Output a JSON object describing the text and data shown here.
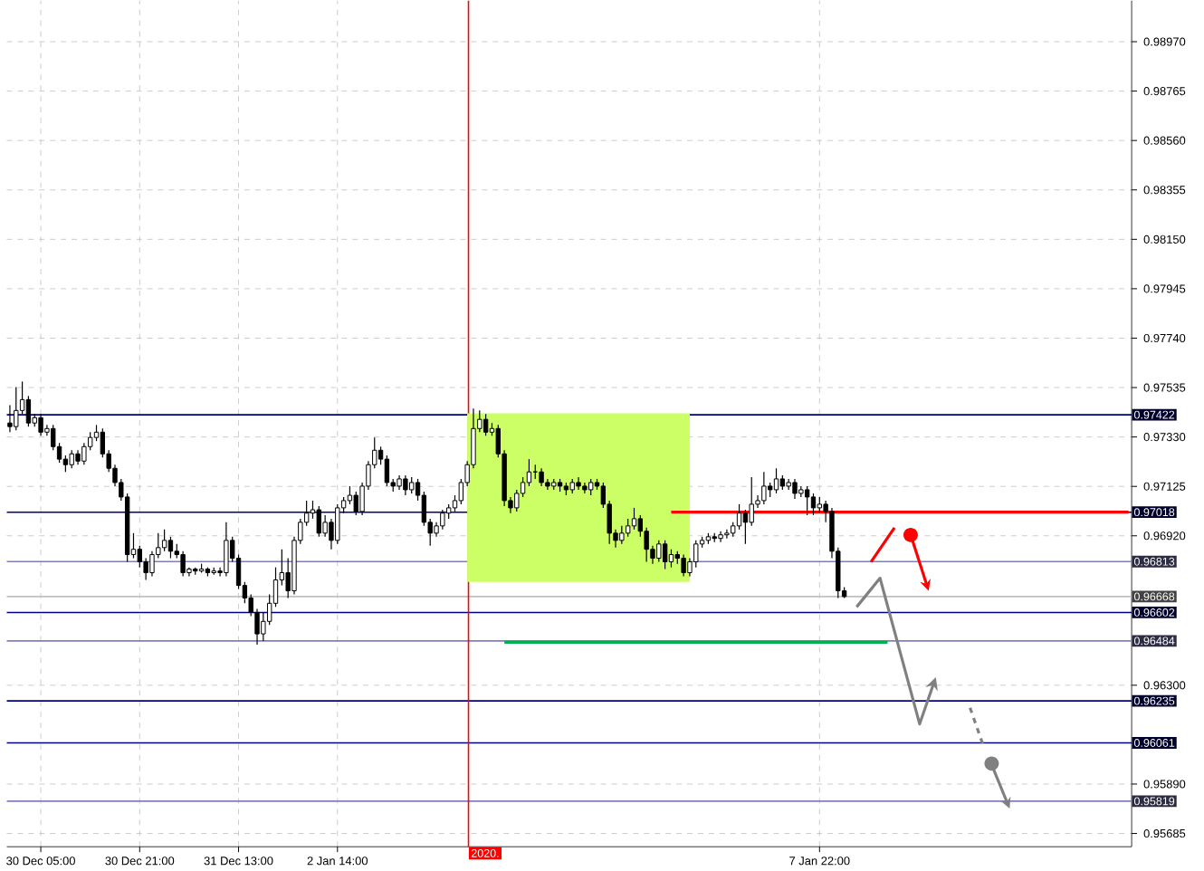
{
  "chart_data": {
    "type": "candlestick",
    "categories": [
      null,
      null,
      null,
      null,
      null,
      "30 Dec 05:00",
      null,
      null,
      null,
      null,
      null,
      null,
      null,
      null,
      null,
      null,
      null,
      null,
      null,
      null,
      null,
      "30 Dec 21:00",
      null,
      null,
      null,
      null,
      null,
      null,
      null,
      null,
      null,
      null,
      null,
      null,
      null,
      null,
      null,
      "31 Dec 13:00",
      null,
      null,
      null,
      null,
      null,
      null,
      null,
      null,
      null,
      null,
      null,
      null,
      null,
      null,
      null,
      "2 Jan 14:00",
      null,
      null,
      null,
      null,
      null,
      null,
      null,
      null,
      null,
      null,
      null,
      null,
      null,
      null,
      null,
      null,
      null,
      null,
      null,
      null,
      null,
      null,
      null,
      null,
      null,
      null,
      null,
      null,
      null,
      null,
      null,
      null,
      null,
      null,
      null,
      null,
      null,
      null,
      null,
      null,
      null,
      null,
      null,
      null,
      null,
      null,
      null,
      null,
      null,
      null,
      null,
      null,
      null,
      null,
      null,
      null,
      null,
      null,
      null,
      null,
      null,
      null,
      null,
      null,
      null,
      null,
      null,
      null,
      null,
      null,
      null,
      null,
      null,
      null,
      null,
      null,
      null,
      "7 Jan 22:00",
      null,
      null,
      null,
      null,
      null,
      null,
      null,
      null,
      null,
      null,
      null,
      null,
      null,
      null,
      null,
      null,
      null,
      null,
      null,
      null,
      null,
      null,
      null,
      null,
      null,
      null,
      null,
      null,
      null,
      null,
      null,
      null,
      null,
      null,
      null,
      null,
      null,
      null,
      null,
      null,
      null,
      null,
      null,
      null,
      null,
      null,
      null,
      null,
      null,
      null
    ],
    "ohlc": [
      [
        0.97388,
        0.97462,
        0.9735,
        0.97373
      ],
      [
        0.97373,
        0.97537,
        0.97358,
        0.9744
      ],
      [
        0.9744,
        0.9756,
        0.97425,
        0.97485
      ],
      [
        0.97485,
        0.975,
        0.97373,
        0.97388
      ],
      [
        0.97388,
        0.97425,
        0.97373,
        0.9741
      ],
      [
        0.9741,
        0.97425,
        0.97335,
        0.9735
      ],
      [
        0.9735,
        0.9738,
        0.97335,
        0.97365
      ],
      [
        0.97365,
        0.9738,
        0.97275,
        0.9729
      ],
      [
        0.9729,
        0.97305,
        0.97223,
        0.97238
      ],
      [
        0.97238,
        0.97253,
        0.97185,
        0.97215
      ],
      [
        0.97215,
        0.97275,
        0.972,
        0.9726
      ],
      [
        0.9726,
        0.97275,
        0.97215,
        0.9723
      ],
      [
        0.9723,
        0.97305,
        0.97215,
        0.9729
      ],
      [
        0.9729,
        0.9735,
        0.97275,
        0.97328
      ],
      [
        0.97328,
        0.9738,
        0.97313,
        0.9735
      ],
      [
        0.9735,
        0.97365,
        0.97245,
        0.9726
      ],
      [
        0.9726,
        0.97275,
        0.97185,
        0.972
      ],
      [
        0.972,
        0.97215,
        0.97126,
        0.97141
      ],
      [
        0.97141,
        0.97156,
        0.97066,
        0.97081
      ],
      [
        0.97081,
        0.97096,
        0.96812,
        0.96842
      ],
      [
        0.96842,
        0.96931,
        0.96827,
        0.96864
      ],
      [
        0.96864,
        0.96879,
        0.96789,
        0.96812
      ],
      [
        0.96812,
        0.96827,
        0.96737,
        0.96767
      ],
      [
        0.96767,
        0.96856,
        0.96752,
        0.96842
      ],
      [
        0.96842,
        0.96931,
        0.96827,
        0.96871
      ],
      [
        0.96871,
        0.96946,
        0.96856,
        0.96901
      ],
      [
        0.96901,
        0.96916,
        0.96827,
        0.96856
      ],
      [
        0.96856,
        0.96886,
        0.96827,
        0.96842
      ],
      [
        0.96842,
        0.96856,
        0.96752,
        0.96767
      ],
      [
        0.96767,
        0.96789,
        0.96752,
        0.96782
      ],
      [
        0.96782,
        0.96789,
        0.96759,
        0.96774
      ],
      [
        0.96774,
        0.96804,
        0.96767,
        0.96782
      ],
      [
        0.96782,
        0.96789,
        0.96752,
        0.96767
      ],
      [
        0.96767,
        0.96789,
        0.96759,
        0.96774
      ],
      [
        0.96774,
        0.96789,
        0.96752,
        0.96767
      ],
      [
        0.96767,
        0.96976,
        0.96752,
        0.96901
      ],
      [
        0.96901,
        0.96916,
        0.96812,
        0.96827
      ],
      [
        0.96827,
        0.96842,
        0.96699,
        0.96714
      ],
      [
        0.96714,
        0.96729,
        0.9664,
        0.96662
      ],
      [
        0.96662,
        0.96677,
        0.96587,
        0.96602
      ],
      [
        0.96602,
        0.96617,
        0.96468,
        0.96513
      ],
      [
        0.96513,
        0.96602,
        0.96483,
        0.96565
      ],
      [
        0.96565,
        0.96677,
        0.9655,
        0.9664
      ],
      [
        0.9664,
        0.96789,
        0.96625,
        0.96737
      ],
      [
        0.96737,
        0.96864,
        0.96714,
        0.96767
      ],
      [
        0.96767,
        0.96827,
        0.96662,
        0.96692
      ],
      [
        0.96692,
        0.96916,
        0.96677,
        0.96901
      ],
      [
        0.96901,
        0.96991,
        0.96886,
        0.96976
      ],
      [
        0.96976,
        0.97066,
        0.96961,
        0.97014
      ],
      [
        0.97014,
        0.97066,
        0.96991,
        0.97028
      ],
      [
        0.97028,
        0.97043,
        0.96916,
        0.96931
      ],
      [
        0.96931,
        0.97006,
        0.96916,
        0.96976
      ],
      [
        0.96976,
        0.96991,
        0.96864,
        0.96901
      ],
      [
        0.96901,
        0.97051,
        0.96886,
        0.97036
      ],
      [
        0.97036,
        0.97081,
        0.97014,
        0.97066
      ],
      [
        0.97066,
        0.97126,
        0.97051,
        0.97088
      ],
      [
        0.97088,
        0.97103,
        0.97006,
        0.97021
      ],
      [
        0.97021,
        0.97141,
        0.97006,
        0.97126
      ],
      [
        0.97126,
        0.9723,
        0.97111,
        0.97215
      ],
      [
        0.97215,
        0.97328,
        0.972,
        0.97275
      ],
      [
        0.97275,
        0.9729,
        0.97215,
        0.97238
      ],
      [
        0.97238,
        0.97253,
        0.97126,
        0.97141
      ],
      [
        0.97141,
        0.97156,
        0.97103,
        0.97126
      ],
      [
        0.97126,
        0.97171,
        0.97111,
        0.97156
      ],
      [
        0.97156,
        0.97171,
        0.97088,
        0.97111
      ],
      [
        0.97111,
        0.97163,
        0.97096,
        0.97141
      ],
      [
        0.97141,
        0.97156,
        0.97066,
        0.97088
      ],
      [
        0.97088,
        0.97103,
        0.96961,
        0.96976
      ],
      [
        0.96976,
        0.96991,
        0.96879,
        0.96931
      ],
      [
        0.96931,
        0.96976,
        0.96916,
        0.96961
      ],
      [
        0.96961,
        0.97028,
        0.96946,
        0.97014
      ],
      [
        0.97014,
        0.97051,
        0.96991,
        0.97036
      ],
      [
        0.97036,
        0.97088,
        0.97021,
        0.97066
      ],
      [
        0.97066,
        0.97156,
        0.97051,
        0.97141
      ],
      [
        0.97141,
        0.9723,
        0.97126,
        0.97215
      ],
      [
        0.97215,
        0.97448,
        0.972,
        0.97365
      ],
      [
        0.97365,
        0.9744,
        0.9735,
        0.97403
      ],
      [
        0.97403,
        0.97425,
        0.97335,
        0.9735
      ],
      [
        0.9735,
        0.97388,
        0.97335,
        0.97365
      ],
      [
        0.97365,
        0.9738,
        0.97245,
        0.9726
      ],
      [
        0.9726,
        0.97275,
        0.97043,
        0.97066
      ],
      [
        0.97066,
        0.97081,
        0.97014,
        0.97036
      ],
      [
        0.97036,
        0.97111,
        0.97021,
        0.97096
      ],
      [
        0.97096,
        0.97163,
        0.97081,
        0.97141
      ],
      [
        0.97141,
        0.97238,
        0.97126,
        0.97185
      ],
      [
        0.97185,
        0.97215,
        0.97156,
        0.97185
      ],
      [
        0.97185,
        0.972,
        0.97126,
        0.97141
      ],
      [
        0.97141,
        0.97156,
        0.97111,
        0.97126
      ],
      [
        0.97126,
        0.97156,
        0.97111,
        0.97141
      ],
      [
        0.97141,
        0.97156,
        0.97103,
        0.97126
      ],
      [
        0.97126,
        0.97141,
        0.97088,
        0.97111
      ],
      [
        0.97111,
        0.97156,
        0.97096,
        0.97141
      ],
      [
        0.97141,
        0.97163,
        0.97111,
        0.97126
      ],
      [
        0.97126,
        0.97141,
        0.97096,
        0.97111
      ],
      [
        0.97111,
        0.97156,
        0.97088,
        0.97141
      ],
      [
        0.97141,
        0.97156,
        0.97111,
        0.97126
      ],
      [
        0.97126,
        0.97141,
        0.97036,
        0.97051
      ],
      [
        0.97051,
        0.97066,
        0.96886,
        0.96931
      ],
      [
        0.96931,
        0.96946,
        0.96871,
        0.96901
      ],
      [
        0.96901,
        0.96961,
        0.96886,
        0.96931
      ],
      [
        0.96931,
        0.96991,
        0.96916,
        0.96961
      ],
      [
        0.96961,
        0.97036,
        0.96946,
        0.96991
      ],
      [
        0.96991,
        0.97006,
        0.96916,
        0.96939
      ],
      [
        0.96939,
        0.96954,
        0.96812,
        0.96864
      ],
      [
        0.96864,
        0.96879,
        0.96804,
        0.96827
      ],
      [
        0.96827,
        0.96901,
        0.96812,
        0.96886
      ],
      [
        0.96886,
        0.96901,
        0.96782,
        0.96812
      ],
      [
        0.96812,
        0.96864,
        0.96789,
        0.96842
      ],
      [
        0.96842,
        0.96856,
        0.96804,
        0.96827
      ],
      [
        0.96827,
        0.96842,
        0.96752,
        0.96767
      ],
      [
        0.96767,
        0.96827,
        0.96752,
        0.96812
      ],
      [
        0.96812,
        0.96901,
        0.96789,
        0.96886
      ],
      [
        0.96886,
        0.96916,
        0.96871,
        0.96901
      ],
      [
        0.96901,
        0.96931,
        0.96886,
        0.96916
      ],
      [
        0.96916,
        0.96931,
        0.96894,
        0.96909
      ],
      [
        0.96909,
        0.96939,
        0.96894,
        0.96924
      ],
      [
        0.96924,
        0.96946,
        0.96909,
        0.96931
      ],
      [
        0.96931,
        0.96976,
        0.96916,
        0.96961
      ],
      [
        0.96961,
        0.97051,
        0.96946,
        0.97014
      ],
      [
        0.97014,
        0.97028,
        0.96886,
        0.96976
      ],
      [
        0.96976,
        0.97163,
        0.96961,
        0.97051
      ],
      [
        0.97051,
        0.97088,
        0.97036,
        0.97066
      ],
      [
        0.97066,
        0.97185,
        0.97051,
        0.97126
      ],
      [
        0.97126,
        0.97141,
        0.97081,
        0.97111
      ],
      [
        0.97111,
        0.972,
        0.97096,
        0.97156
      ],
      [
        0.97156,
        0.97171,
        0.97111,
        0.97126
      ],
      [
        0.97126,
        0.97156,
        0.97111,
        0.97141
      ],
      [
        0.97141,
        0.97156,
        0.97073,
        0.97096
      ],
      [
        0.97096,
        0.97126,
        0.97081,
        0.97111
      ],
      [
        0.97111,
        0.97126,
        0.97006,
        0.97081
      ],
      [
        0.97081,
        0.97096,
        0.97006,
        0.97036
      ],
      [
        0.97036,
        0.97081,
        0.97014,
        0.97051
      ],
      [
        0.97051,
        0.97066,
        0.96976,
        0.97021
      ],
      [
        0.97021,
        0.97036,
        0.96827,
        0.96856
      ],
      [
        0.96856,
        0.96871,
        0.96662,
        0.96692
      ],
      [
        0.96692,
        0.96707,
        0.96662,
        0.96668
      ],
      null,
      null,
      null,
      null,
      null,
      null,
      null,
      null,
      null,
      null,
      null,
      null,
      null,
      null,
      null,
      null,
      null,
      null,
      null,
      null,
      null,
      null,
      null,
      null,
      null,
      null,
      null,
      null,
      null,
      null,
      null,
      null,
      null,
      null,
      null,
      null,
      null,
      null,
      null,
      null,
      null,
      null,
      null,
      null,
      null,
      null
    ],
    "series": [
      {
        "type": "line",
        "color": "#ccff66",
        "upper": [
          null,
          null,
          null,
          null,
          null,
          null,
          null,
          null,
          null,
          null,
          null,
          null,
          null,
          null,
          null,
          null,
          null,
          null,
          null,
          null,
          null,
          null,
          null,
          null,
          null,
          null,
          null,
          null,
          null,
          null,
          null,
          null,
          null,
          null,
          null,
          null,
          null,
          null,
          null,
          null,
          null,
          null,
          null,
          null,
          null,
          null,
          null,
          null,
          null,
          null,
          null,
          null,
          null,
          null,
          null,
          null,
          null,
          null,
          null,
          null,
          null,
          null,
          null,
          null,
          null,
          null,
          null,
          null,
          null,
          null,
          null,
          null,
          null,
          null,
          0.97422,
          0.97422,
          0.97422,
          0.97422,
          0.97422,
          0.97422,
          0.97422,
          0.97422,
          0.97422,
          0.97422,
          0.97422,
          0.97422,
          0.97422,
          0.97422,
          0.97422,
          0.97422,
          0.97422,
          0.97422,
          0.97422,
          0.97422,
          0.97422,
          0.97422,
          0.97422,
          0.97422,
          0.97422,
          0.97422,
          0.97422,
          0.97422,
          0.97422,
          0.97422,
          0.97422,
          0.97422,
          0.97422,
          0.97422,
          0.97422,
          0.97422,
          0.97422,
          null,
          null,
          null,
          null,
          null,
          null,
          null,
          null,
          null,
          null,
          null,
          null,
          null,
          null,
          null,
          null,
          null,
          null,
          null,
          null,
          null,
          null,
          null,
          null,
          null,
          null,
          null,
          null,
          null,
          null,
          null,
          null,
          null,
          null,
          null,
          null,
          null,
          null,
          null,
          null,
          null,
          null,
          null,
          null,
          null,
          null,
          null,
          null,
          null,
          null,
          null,
          null,
          null,
          null,
          null,
          null,
          null,
          null,
          null,
          null,
          null,
          null,
          null,
          null,
          null,
          null,
          null,
          null,
          null,
          null,
          null
        ],
        "values": [
          null,
          null,
          null,
          null,
          null,
          null,
          null,
          null,
          null,
          null,
          null,
          null,
          null,
          null,
          null,
          null,
          null,
          null,
          null,
          null,
          null,
          null,
          null,
          null,
          null,
          null,
          null,
          null,
          null,
          null,
          null,
          null,
          null,
          null,
          null,
          null,
          null,
          null,
          null,
          null,
          null,
          null,
          null,
          null,
          null,
          null,
          null,
          null,
          null,
          null,
          null,
          null,
          null,
          null,
          null,
          null,
          null,
          null,
          null,
          null,
          null,
          null,
          null,
          null,
          null,
          null,
          null,
          null,
          null,
          null,
          null,
          null,
          null,
          null,
          0.97422,
          0.97422,
          0.97422,
          0.97422,
          0.97422,
          0.97422,
          0.97422,
          0.97422,
          0.97422,
          0.97422,
          0.97422,
          0.97422,
          0.97422,
          0.97422,
          0.97422,
          0.97422,
          0.97422,
          0.97422,
          0.97422,
          0.97422,
          0.97422,
          0.97422,
          0.97422,
          0.97422,
          0.97422,
          0.97422,
          0.97422,
          0.97422,
          0.97422,
          0.97422,
          0.97422,
          0.97422,
          0.97422,
          0.97422,
          0.97422,
          0.97422,
          0.97422,
          null,
          null,
          null,
          null,
          null,
          null,
          null,
          null,
          null,
          null,
          null,
          null,
          null,
          null,
          null,
          null,
          null,
          null,
          null,
          null,
          null,
          null,
          null,
          null,
          null,
          null,
          null,
          null,
          null,
          null,
          null,
          null,
          null,
          null,
          null,
          null,
          null,
          null,
          null,
          null,
          null,
          null,
          null,
          null,
          null,
          null,
          null,
          null,
          null,
          null,
          null,
          null,
          null,
          null,
          null,
          null,
          null,
          null,
          null,
          null,
          null,
          null,
          null,
          null,
          null,
          null,
          null,
          null,
          null,
          null,
          null
        ],
        "lower": [
          null,
          null,
          null,
          null,
          null,
          null,
          null,
          null,
          null,
          null,
          null,
          null,
          null,
          null,
          null,
          null,
          null,
          null,
          null,
          null,
          null,
          null,
          null,
          null,
          null,
          null,
          null,
          null,
          null,
          null,
          null,
          null,
          null,
          null,
          null,
          null,
          null,
          null,
          null,
          null,
          null,
          null,
          null,
          null,
          null,
          null,
          null,
          null,
          null,
          null,
          null,
          null,
          null,
          null,
          null,
          null,
          null,
          null,
          null,
          null,
          null,
          null,
          null,
          null,
          null,
          null,
          null,
          null,
          null,
          null,
          null,
          null,
          null,
          null,
          0.96729,
          0.96729,
          0.96729,
          0.96729,
          0.96729,
          0.96729,
          0.96729,
          0.96729,
          0.96729,
          0.96729,
          0.96729,
          0.96729,
          0.96729,
          0.96729,
          0.96729,
          0.96729,
          0.96729,
          0.96729,
          0.96729,
          0.96729,
          0.96729,
          0.96729,
          0.96729,
          0.96729,
          0.96729,
          0.96729,
          0.96729,
          0.96729,
          0.96729,
          0.96729,
          0.96729,
          0.96729,
          0.96729,
          0.96729,
          0.96729,
          0.96729,
          0.96729,
          null,
          null,
          null,
          null,
          null,
          null,
          null,
          null,
          null,
          null,
          null,
          null,
          null,
          null,
          null,
          null,
          null,
          null,
          null,
          null,
          null,
          null,
          null,
          null,
          null,
          null,
          null,
          null,
          null,
          null,
          null,
          null,
          null,
          null,
          null,
          null,
          null,
          null,
          null,
          null,
          null,
          null,
          null,
          null,
          null,
          null,
          null,
          null,
          null,
          null,
          null,
          null,
          null,
          null,
          null,
          null,
          null,
          null,
          null,
          null,
          null,
          null,
          null,
          null,
          null,
          null,
          null,
          null,
          null,
          null,
          null
        ]
      },
      {
        "type": "line",
        "color": "#ff0000",
        "values": [
          null,
          null,
          null,
          null,
          null,
          null,
          null,
          null,
          null,
          null,
          null,
          null,
          null,
          null,
          null,
          null,
          null,
          null,
          null,
          null,
          null,
          null,
          null,
          null,
          null,
          null,
          null,
          null,
          null,
          null,
          null,
          null,
          null,
          null,
          null,
          null,
          null,
          null,
          null,
          null,
          null,
          null,
          null,
          null,
          null,
          null,
          null,
          null,
          null,
          null,
          null,
          null,
          null,
          null,
          null,
          null,
          null,
          null,
          null,
          null,
          null,
          null,
          null,
          null,
          null,
          null,
          null,
          null,
          null,
          null,
          null,
          null,
          null,
          null,
          null,
          null,
          null,
          null,
          null,
          null,
          null,
          null,
          null,
          null,
          null,
          null,
          null,
          null,
          null,
          null,
          null,
          null,
          null,
          null,
          null,
          null,
          null,
          null,
          null,
          null,
          null,
          null,
          null,
          null,
          null,
          null,
          null,
          0.97018,
          0.97018,
          0.97018,
          0.97018,
          0.97018,
          0.97018,
          0.97018,
          0.97018,
          0.97018,
          0.97018,
          0.97018,
          0.97018,
          0.97018,
          0.97018,
          0.97018,
          0.97018,
          0.97018,
          0.97018,
          0.97018,
          0.97018,
          0.97018,
          0.97018,
          0.97018,
          0.97018,
          0.97018,
          0.97018,
          0.97018,
          0.97018,
          0.97018,
          0.97018,
          0.97018,
          0.97018,
          0.97018,
          0.97018,
          0.97018,
          0.97018,
          0.97018,
          0.97018,
          0.97018,
          0.97018,
          0.97018,
          0.97018,
          0.97018,
          0.97018,
          0.97018,
          0.97018,
          0.97018,
          0.97018,
          0.97018,
          0.97018,
          0.97018,
          0.97018,
          0.97018,
          0.97018,
          0.97018,
          0.97018,
          0.97018,
          0.97018,
          0.97018,
          0.97018,
          0.97018,
          0.97018,
          0.97018,
          0.97018,
          0.97018,
          0.97018,
          0.97018,
          0.97018,
          0.97018,
          0.97018,
          0.97018,
          0.97018,
          0.97018,
          0.97018,
          0.97018
        ]
      },
      {
        "type": "line",
        "color": "#00b050",
        "values": [
          null,
          null,
          null,
          null,
          null,
          null,
          null,
          null,
          null,
          null,
          null,
          null,
          null,
          null,
          null,
          null,
          null,
          null,
          null,
          null,
          null,
          null,
          null,
          null,
          null,
          null,
          null,
          null,
          null,
          null,
          null,
          null,
          null,
          null,
          null,
          null,
          null,
          null,
          null,
          null,
          null,
          null,
          null,
          null,
          null,
          null,
          null,
          null,
          null,
          null,
          null,
          null,
          null,
          null,
          null,
          null,
          null,
          null,
          null,
          null,
          null,
          null,
          null,
          null,
          null,
          null,
          null,
          null,
          null,
          null,
          null,
          null,
          null,
          null,
          null,
          null,
          null,
          null,
          null,
          null,
          0.96478,
          0.96478,
          0.96478,
          0.96478,
          0.96478,
          0.96478,
          0.96478,
          0.96478,
          0.96478,
          0.96478,
          0.96478,
          0.96478,
          0.96478,
          0.96478,
          0.96478,
          0.96478,
          0.96478,
          0.96478,
          0.96478,
          0.96478,
          0.96478,
          0.96478,
          0.96478,
          0.96478,
          0.96478,
          0.96478,
          0.96478,
          0.96478,
          0.96478,
          0.96478,
          0.96478,
          0.96478,
          0.96478,
          0.96478,
          0.96478,
          0.96478,
          0.96478,
          0.96478,
          0.96478,
          0.96478,
          0.96478,
          0.96478,
          0.96478,
          0.96478,
          0.96478,
          0.96478,
          0.96478,
          0.96478,
          0.96478,
          0.96478,
          0.96478,
          0.96478,
          0.96478,
          0.96478,
          0.96478,
          0.96478,
          0.96478,
          0.96478,
          0.96478,
          0.96478,
          0.96478,
          0.96478,
          0.96478,
          null,
          null,
          null,
          null,
          null,
          null,
          null,
          null,
          null,
          null,
          null,
          null,
          null,
          null,
          null,
          null,
          null,
          null,
          null,
          null,
          null,
          null,
          null,
          null,
          null,
          null,
          null,
          null,
          null,
          null,
          null,
          null,
          null,
          null,
          null,
          null,
          null,
          null,
          null
        ]
      }
    ],
    "ylim": [
      0.9563,
      0.9914
    ],
    "yticks": [
      {
        "value": 0.9897,
        "label": "0.98970"
      },
      {
        "value": 0.98765,
        "label": "0.98765"
      },
      {
        "value": 0.9856,
        "label": "0.98560"
      },
      {
        "value": 0.98355,
        "label": "0.98355"
      },
      {
        "value": 0.9815,
        "label": "0.98150"
      },
      {
        "value": 0.97945,
        "label": "0.97945"
      },
      {
        "value": 0.9774,
        "label": "0.97740"
      },
      {
        "value": 0.97535,
        "label": "0.97535"
      },
      {
        "value": 0.9733,
        "label": "0.97330"
      },
      {
        "value": 0.97125,
        "label": "0.97125"
      },
      {
        "value": 0.9692,
        "label": "0.96920"
      },
      {
        "value": 0.963,
        "label": "0.96300"
      },
      {
        "value": 0.9589,
        "label": "0.95890"
      },
      {
        "value": 0.95685,
        "label": "0.95685"
      }
    ],
    "annotations": [
      "2020."
    ],
    "ref_lines": [
      {
        "axis": "y",
        "value": 0.97422,
        "label": "0.97422",
        "color": "#000080"
      },
      {
        "axis": "y",
        "value": 0.97018,
        "label": "0.97018",
        "color": "#000080"
      },
      {
        "axis": "y",
        "value": 0.96813,
        "label": "0.96813",
        "color": "#7f7fc0"
      },
      {
        "axis": "y",
        "value": 0.96668,
        "label": "0.96668",
        "color": "#c0c0c0"
      },
      {
        "axis": "y",
        "value": 0.96602,
        "label": "0.96602",
        "color": "#000080"
      },
      {
        "axis": "y",
        "value": 0.96484,
        "label": "0.96484",
        "color": "#7f7fc0"
      },
      {
        "axis": "y",
        "value": 0.96235,
        "label": "0.96235",
        "color": "#000080"
      },
      {
        "axis": "y",
        "value": 0.96061,
        "label": "0.96061",
        "color": "#000080"
      },
      {
        "axis": "y",
        "value": 0.95819,
        "label": "0.95819",
        "color": "#7f7fc0"
      }
    ],
    "grid": true
  }
}
